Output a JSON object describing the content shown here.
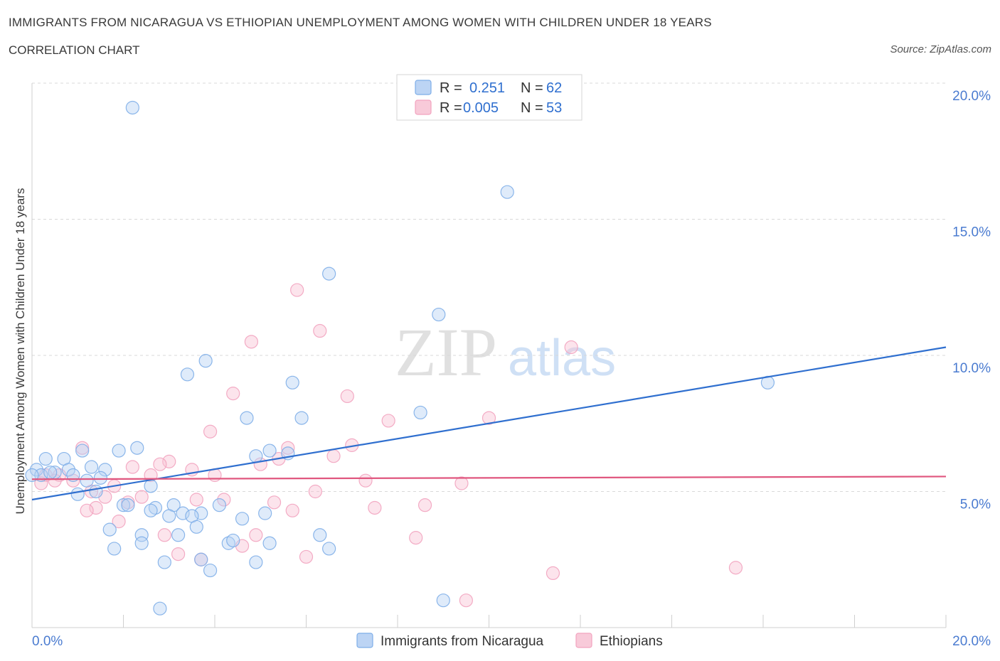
{
  "header": {
    "title": "IMMIGRANTS FROM NICARAGUA VS ETHIOPIAN UNEMPLOYMENT AMONG WOMEN WITH CHILDREN UNDER 18 YEARS",
    "subtitle": "CORRELATION CHART",
    "source": "Source: ZipAtlas.com"
  },
  "watermark": {
    "zip": "ZIP",
    "atlas": "atlas"
  },
  "colors": {
    "blue": "#7eaee8",
    "blue_line": "#2f6fcf",
    "pink": "#f2a3bf",
    "pink_line": "#e0577f",
    "axis_text": "#4a7bd0",
    "grid": "#d9d9d9"
  },
  "legend_top": {
    "rows": [
      {
        "r_label": "R =",
        "r_value": "0.251",
        "n_label": "N =",
        "n_value": "62"
      },
      {
        "r_label": "R =",
        "r_value": "0.005",
        "n_label": "N =",
        "n_value": "53"
      }
    ]
  },
  "chart_data": {
    "type": "scatter",
    "title": "IMMIGRANTS FROM NICARAGUA VS ETHIOPIAN UNEMPLOYMENT AMONG WOMEN WITH CHILDREN UNDER 18 YEARS",
    "xlabel": "",
    "ylabel": "Unemployment Among Women with Children Under 18 years",
    "xlim": [
      0,
      20
    ],
    "ylim": [
      0,
      20
    ],
    "x_tick_labels": [
      "0.0%",
      "20.0%"
    ],
    "y_tick_labels": [
      "5.0%",
      "10.0%",
      "15.0%",
      "20.0%"
    ],
    "y_ticks": [
      5,
      10,
      15,
      20
    ],
    "grid": true,
    "legend_position": "top-center",
    "series": [
      {
        "name": "Immigrants from Nicaragua",
        "color": "#7eaee8",
        "trend": {
          "x": [
            0,
            20
          ],
          "y": [
            4.7,
            10.3
          ]
        },
        "points": [
          [
            2.2,
            19.1
          ],
          [
            10.4,
            16.0
          ],
          [
            6.5,
            13.0
          ],
          [
            8.9,
            11.5
          ],
          [
            16.1,
            9.0
          ],
          [
            3.8,
            9.8
          ],
          [
            3.4,
            9.3
          ],
          [
            5.7,
            9.0
          ],
          [
            8.5,
            7.9
          ],
          [
            4.7,
            7.7
          ],
          [
            5.9,
            7.7
          ],
          [
            0.3,
            6.2
          ],
          [
            0.7,
            6.2
          ],
          [
            1.1,
            6.5
          ],
          [
            1.9,
            6.5
          ],
          [
            2.3,
            6.6
          ],
          [
            5.6,
            6.4
          ],
          [
            4.9,
            6.3
          ],
          [
            5.2,
            6.5
          ],
          [
            0.1,
            5.8
          ],
          [
            0.2,
            5.6
          ],
          [
            0.5,
            5.7
          ],
          [
            0.8,
            5.8
          ],
          [
            0.9,
            5.6
          ],
          [
            1.3,
            5.9
          ],
          [
            1.6,
            5.8
          ],
          [
            1.2,
            5.4
          ],
          [
            1.5,
            5.5
          ],
          [
            2.6,
            5.2
          ],
          [
            1.0,
            4.9
          ],
          [
            1.4,
            5.0
          ],
          [
            2.0,
            4.5
          ],
          [
            2.1,
            4.5
          ],
          [
            2.7,
            4.4
          ],
          [
            3.1,
            4.5
          ],
          [
            3.3,
            4.2
          ],
          [
            3.7,
            4.2
          ],
          [
            2.6,
            4.3
          ],
          [
            4.1,
            4.5
          ],
          [
            4.6,
            4.0
          ],
          [
            5.1,
            4.2
          ],
          [
            3.5,
            4.1
          ],
          [
            1.7,
            3.6
          ],
          [
            2.4,
            3.4
          ],
          [
            3.2,
            3.4
          ],
          [
            3.6,
            3.7
          ],
          [
            3.0,
            4.1
          ],
          [
            6.3,
            3.4
          ],
          [
            1.8,
            2.9
          ],
          [
            2.4,
            3.1
          ],
          [
            4.3,
            3.1
          ],
          [
            4.4,
            3.2
          ],
          [
            5.2,
            3.1
          ],
          [
            6.5,
            2.9
          ],
          [
            2.9,
            2.4
          ],
          [
            3.7,
            2.5
          ],
          [
            3.9,
            2.1
          ],
          [
            4.9,
            2.4
          ],
          [
            2.8,
            0.7
          ],
          [
            9.0,
            1.0
          ],
          [
            0.0,
            5.6
          ],
          [
            0.4,
            5.7
          ]
        ]
      },
      {
        "name": "Ethiopians",
        "color": "#f2a3bf",
        "trend": {
          "x": [
            0,
            20
          ],
          "y": [
            5.45,
            5.55
          ]
        },
        "points": [
          [
            5.8,
            12.4
          ],
          [
            6.3,
            10.9
          ],
          [
            4.8,
            10.5
          ],
          [
            11.8,
            10.3
          ],
          [
            4.4,
            8.6
          ],
          [
            6.9,
            8.5
          ],
          [
            7.8,
            7.6
          ],
          [
            10.0,
            7.7
          ],
          [
            3.9,
            7.2
          ],
          [
            7.0,
            6.7
          ],
          [
            6.6,
            6.3
          ],
          [
            1.1,
            6.6
          ],
          [
            5.6,
            6.6
          ],
          [
            5.4,
            6.2
          ],
          [
            3.0,
            6.1
          ],
          [
            2.8,
            6.0
          ],
          [
            5.0,
            6.0
          ],
          [
            2.2,
            5.9
          ],
          [
            3.5,
            5.8
          ],
          [
            0.3,
            5.6
          ],
          [
            0.6,
            5.6
          ],
          [
            2.6,
            5.6
          ],
          [
            4.0,
            5.6
          ],
          [
            0.5,
            5.4
          ],
          [
            0.9,
            5.4
          ],
          [
            0.2,
            5.3
          ],
          [
            1.8,
            5.2
          ],
          [
            7.3,
            5.4
          ],
          [
            9.4,
            5.3
          ],
          [
            1.3,
            5.0
          ],
          [
            6.2,
            5.0
          ],
          [
            2.4,
            4.8
          ],
          [
            1.6,
            4.8
          ],
          [
            3.6,
            4.7
          ],
          [
            4.2,
            4.7
          ],
          [
            2.1,
            4.6
          ],
          [
            5.3,
            4.6
          ],
          [
            8.6,
            4.5
          ],
          [
            1.4,
            4.4
          ],
          [
            1.2,
            4.3
          ],
          [
            5.7,
            4.3
          ],
          [
            7.5,
            4.4
          ],
          [
            1.9,
            3.9
          ],
          [
            2.9,
            3.4
          ],
          [
            4.9,
            3.4
          ],
          [
            8.4,
            3.3
          ],
          [
            4.6,
            3.0
          ],
          [
            3.2,
            2.7
          ],
          [
            3.7,
            2.5
          ],
          [
            6.0,
            2.6
          ],
          [
            11.4,
            2.0
          ],
          [
            15.4,
            2.2
          ],
          [
            9.5,
            1.0
          ]
        ]
      }
    ]
  },
  "bottom_legend": {
    "items": [
      {
        "label": "Immigrants from Nicaragua"
      },
      {
        "label": "Ethiopians"
      }
    ]
  }
}
